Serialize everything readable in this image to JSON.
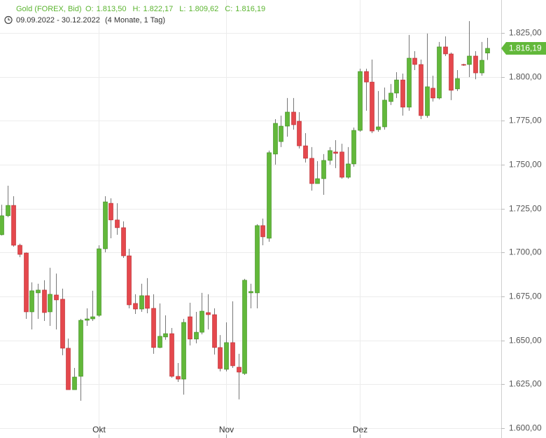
{
  "chart_data": {
    "type": "candlestick",
    "title": "Gold (FOREX, Bid)",
    "ohlc": [
      {
        "key": "O:",
        "value": "1.813,50"
      },
      {
        "key": "H:",
        "value": "1.822,17"
      },
      {
        "key": "L:",
        "value": "1.809,62"
      },
      {
        "key": "C:",
        "value": "1.816,19"
      }
    ],
    "date_range": "09.09.2022 - 30.12.2022",
    "period": "(4 Monate, 1 Tag)",
    "categories": [
      null,
      null,
      null,
      null,
      null,
      null,
      null,
      null,
      null,
      null,
      null,
      null,
      null,
      null,
      null,
      null,
      "Okt",
      null,
      null,
      null,
      null,
      null,
      null,
      null,
      null,
      null,
      null,
      null,
      null,
      null,
      null,
      null,
      null,
      null,
      null,
      null,
      null,
      "Nov",
      null,
      null,
      null,
      null,
      null,
      null,
      null,
      null,
      null,
      null,
      null,
      null,
      null,
      null,
      null,
      null,
      null,
      null,
      null,
      null,
      null,
      "Dez",
      null,
      null,
      null,
      null,
      null,
      null,
      null,
      null,
      null,
      null,
      null,
      null,
      null,
      null,
      null,
      null,
      null,
      null,
      null,
      null,
      null
    ],
    "open": [
      1710.1,
      1720.9,
      1726.8,
      1704.1,
      1699.7,
      1666.2,
      1677.0,
      1678.6,
      1666.2,
      1675.8,
      1673.4,
      1645.5,
      1621.9,
      1629.5,
      1661.4,
      1662.2,
      1664.2,
      1702.1,
      1728.0,
      1718.5,
      1714.1,
      1698.1,
      1671.0,
      1667.8,
      1675.4,
      1668.2,
      1645.9,
      1651.9,
      1653.8,
      1629.5,
      1627.9,
      1663.4,
      1650.7,
      1654.6,
      1665.8,
      1664.6,
      1645.9,
      1633.5,
      1648.7,
      1634.7,
      1631.1,
      1677.0,
      1677.0,
      1715.3,
      1708.1,
      1756.0,
      1763.1,
      1771.9,
      1779.9,
      1774.7,
      1760.7,
      1753.6,
      1739.2,
      1742.0,
      1752.4,
      1757.2,
      1757.2,
      1742.8,
      1750.4,
      1769.5,
      1803.0,
      1797.0,
      1769.9,
      1771.5,
      1785.9,
      1790.7,
      1798.2,
      1782.7,
      1810.6,
      1807.0,
      1777.9,
      1793.5,
      1787.9,
      1817.0,
      1813.0,
      1793.1,
      1807.0,
      1807.0,
      1811.8,
      1802.2,
      1813.5
    ],
    "high": [
      1727.2,
      1738.0,
      1732.0,
      1705.0,
      1700.0,
      1683.0,
      1682.2,
      1684.2,
      1691.3,
      1688.0,
      1679.4,
      1651.0,
      1634.3,
      1662.2,
      1668.2,
      1678.2,
      1704.1,
      1732.0,
      1730.8,
      1728.0,
      1717.7,
      1702.1,
      1676.2,
      1682.2,
      1685.4,
      1676.2,
      1671.0,
      1664.2,
      1657.0,
      1637.1,
      1662.2,
      1671.4,
      1666.2,
      1677.0,
      1676.2,
      1668.2,
      1653.0,
      1660.2,
      1672.2,
      1642.3,
      1685.0,
      1682.2,
      1716.1,
      1719.3,
      1758.0,
      1775.9,
      1777.9,
      1787.9,
      1787.9,
      1779.9,
      1767.9,
      1760.0,
      1752.0,
      1756.0,
      1760.0,
      1763.9,
      1761.9,
      1760.0,
      1771.1,
      1804.6,
      1804.6,
      1809.8,
      1791.9,
      1793.9,
      1795.9,
      1802.6,
      1801.8,
      1823.8,
      1814.6,
      1809.8,
      1824.6,
      1800.6,
      1819.8,
      1823.0,
      1813.8,
      1803.8,
      1807.4,
      1831.7,
      1814.6,
      1819.8,
      1822.17
    ],
    "low": [
      1709.7,
      1720.1,
      1703.3,
      1697.3,
      1662.2,
      1656.2,
      1662.2,
      1661.0,
      1658.2,
      1656.2,
      1641.5,
      1621.9,
      1621.9,
      1615.6,
      1658.2,
      1661.0,
      1663.4,
      1700.1,
      1708.1,
      1710.1,
      1696.9,
      1668.2,
      1665.0,
      1666.2,
      1665.4,
      1642.3,
      1645.5,
      1650.3,
      1628.7,
      1626.3,
      1619.1,
      1647.1,
      1648.3,
      1653.4,
      1656.2,
      1641.9,
      1632.3,
      1632.3,
      1634.3,
      1616.4,
      1630.3,
      1668.2,
      1668.2,
      1704.1,
      1706.1,
      1750.0,
      1760.0,
      1765.9,
      1769.9,
      1759.2,
      1751.2,
      1735.2,
      1739.2,
      1732.8,
      1750.0,
      1748.0,
      1742.0,
      1742.0,
      1748.8,
      1768.7,
      1780.7,
      1767.9,
      1768.7,
      1769.9,
      1783.9,
      1787.9,
      1777.9,
      1780.7,
      1803.8,
      1775.9,
      1776.7,
      1785.9,
      1787.1,
      1811.8,
      1786.7,
      1791.9,
      1806.2,
      1799.8,
      1798.6,
      1800.6,
      1809.62
    ],
    "close": [
      1720.9,
      1726.8,
      1704.1,
      1698.9,
      1666.2,
      1678.2,
      1678.6,
      1665.8,
      1676.2,
      1673.0,
      1645.5,
      1621.9,
      1629.1,
      1661.4,
      1662.2,
      1663.4,
      1702.1,
      1728.8,
      1718.5,
      1714.1,
      1698.1,
      1670.2,
      1667.8,
      1675.4,
      1668.2,
      1645.9,
      1652.3,
      1653.8,
      1629.5,
      1627.9,
      1660.2,
      1650.7,
      1654.6,
      1666.6,
      1664.6,
      1645.9,
      1633.9,
      1648.7,
      1635.5,
      1631.9,
      1684.2,
      1677.8,
      1715.3,
      1708.9,
      1756.8,
      1773.5,
      1771.9,
      1779.9,
      1772.7,
      1760.7,
      1753.6,
      1739.2,
      1742.0,
      1752.4,
      1758.0,
      1756.4,
      1742.8,
      1750.4,
      1769.5,
      1803.0,
      1797.0,
      1769.1,
      1771.5,
      1786.7,
      1790.7,
      1798.2,
      1782.7,
      1810.6,
      1807.0,
      1777.9,
      1794.3,
      1787.9,
      1817.0,
      1813.0,
      1792.3,
      1799.0,
      1806.6,
      1811.8,
      1802.2,
      1809.4,
      1816.19
    ],
    "up_color": "#62b83a",
    "down_color": "#e5484d",
    "last_value": {
      "value": 1816.19,
      "label": "1.816,19"
    },
    "ylim": [
      1594.4,
      1843.7
    ],
    "yticks": [
      {
        "value": 1600,
        "label": "1.600,00"
      },
      {
        "value": 1625,
        "label": "1.625,00"
      },
      {
        "value": 1650,
        "label": "1.650,00"
      },
      {
        "value": 1675,
        "label": "1.675,00"
      },
      {
        "value": 1700,
        "label": "1.700,00"
      },
      {
        "value": 1725,
        "label": "1.725,00"
      },
      {
        "value": 1750,
        "label": "1.750,00"
      },
      {
        "value": 1775,
        "label": "1.775,00"
      },
      {
        "value": 1800,
        "label": "1.800,00"
      },
      {
        "value": 1825,
        "label": "1.825,00"
      }
    ],
    "grid": true
  }
}
